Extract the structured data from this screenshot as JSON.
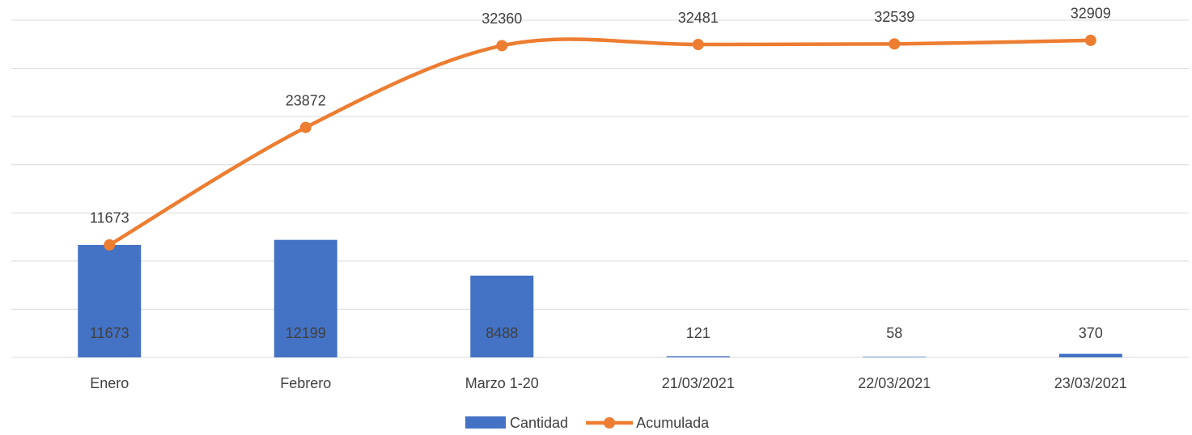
{
  "chart_data": {
    "type": "bar_line",
    "categories": [
      "Enero",
      "Febrero",
      "Marzo 1-20",
      "21/03/2021",
      "22/03/2021",
      "23/03/2021"
    ],
    "series": [
      {
        "name": "Cantidad",
        "type": "bar",
        "color": "#4472c4",
        "values": [
          11673,
          12199,
          8488,
          121,
          58,
          370
        ]
      },
      {
        "name": "Acumulada",
        "type": "line",
        "color": "#ed7d31",
        "smooth": true,
        "values": [
          11673,
          23872,
          32360,
          32481,
          32539,
          32909
        ]
      }
    ],
    "ylim": [
      0,
      35000
    ],
    "yticks": [
      0,
      5000,
      10000,
      15000,
      20000,
      25000,
      30000,
      35000
    ],
    "grid": true,
    "legend": "bottom"
  }
}
